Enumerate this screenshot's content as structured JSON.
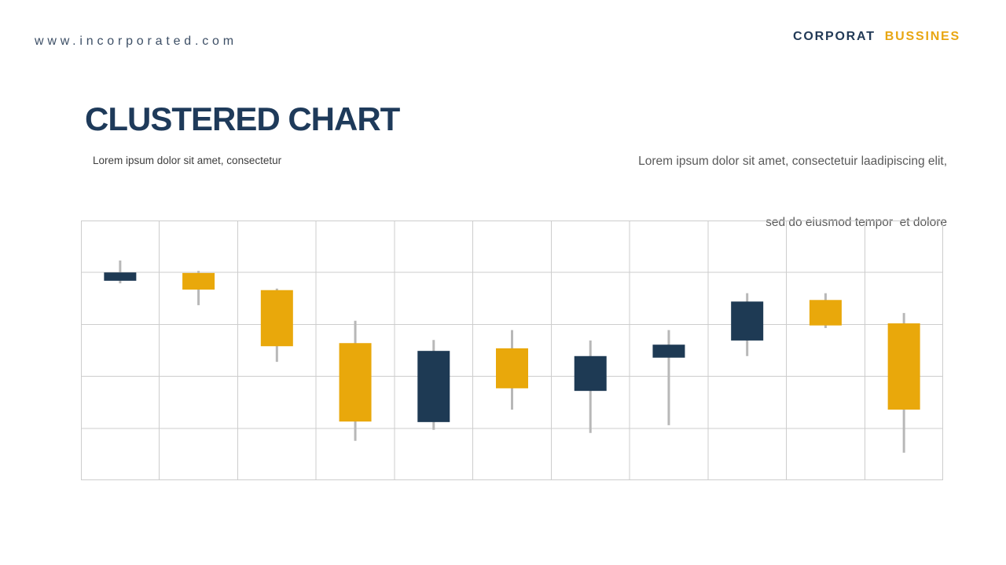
{
  "header": {
    "website": "www.incorporated.com",
    "brand": {
      "primary": "CORPORAT",
      "secondary": "BUSSINES"
    }
  },
  "title_block": {
    "title": "CLUSTERED CHART",
    "subtitle": "Lorem ipsum dolor sit amet, consectetur"
  },
  "description": {
    "line1": "Lorem ipsum dolor sit amet, consectetuir laadipiscing elit,",
    "line2": "sed do eiusmod tempor  et dolore"
  },
  "colors": {
    "navy": "#1e3a54",
    "gold": "#e9a80b",
    "wick": "#b8b8b8",
    "grid": "#cdcdcd",
    "title_navy": "#1e3a5a",
    "brand_gold": "#e8a612"
  },
  "chart_data": {
    "type": "candlestick",
    "title": "",
    "xlabel": "",
    "ylabel": "",
    "ylim": [
      0,
      5
    ],
    "grid": {
      "columns": 11,
      "rows": 5,
      "visible": true
    },
    "legend": "none",
    "axis_tick_labels": "none",
    "candles": [
      {
        "index": 1,
        "color": "navy",
        "body_top": 4.0,
        "body_bottom": 3.84,
        "high": 4.23,
        "low": 3.79
      },
      {
        "index": 2,
        "color": "gold",
        "body_top": 3.99,
        "body_bottom": 3.67,
        "high": 4.03,
        "low": 3.37
      },
      {
        "index": 3,
        "color": "gold",
        "body_top": 3.66,
        "body_bottom": 2.58,
        "high": 3.69,
        "low": 2.28
      },
      {
        "index": 4,
        "color": "gold",
        "body_top": 2.64,
        "body_bottom": 1.13,
        "high": 3.07,
        "low": 0.76
      },
      {
        "index": 5,
        "color": "navy",
        "body_top": 2.49,
        "body_bottom": 1.12,
        "high": 2.7,
        "low": 0.97
      },
      {
        "index": 6,
        "color": "gold",
        "body_top": 2.54,
        "body_bottom": 1.77,
        "high": 2.89,
        "low": 1.36
      },
      {
        "index": 7,
        "color": "navy",
        "body_top": 2.39,
        "body_bottom": 1.72,
        "high": 2.69,
        "low": 0.91
      },
      {
        "index": 8,
        "color": "navy",
        "body_top": 2.61,
        "body_bottom": 2.36,
        "high": 2.89,
        "low": 1.06
      },
      {
        "index": 9,
        "color": "navy",
        "body_top": 3.44,
        "body_bottom": 2.69,
        "high": 3.6,
        "low": 2.39
      },
      {
        "index": 10,
        "color": "gold",
        "body_top": 3.47,
        "body_bottom": 2.98,
        "high": 3.6,
        "low": 2.93
      },
      {
        "index": 11,
        "color": "gold",
        "body_top": 3.02,
        "body_bottom": 1.36,
        "high": 3.22,
        "low": 0.53
      }
    ]
  }
}
